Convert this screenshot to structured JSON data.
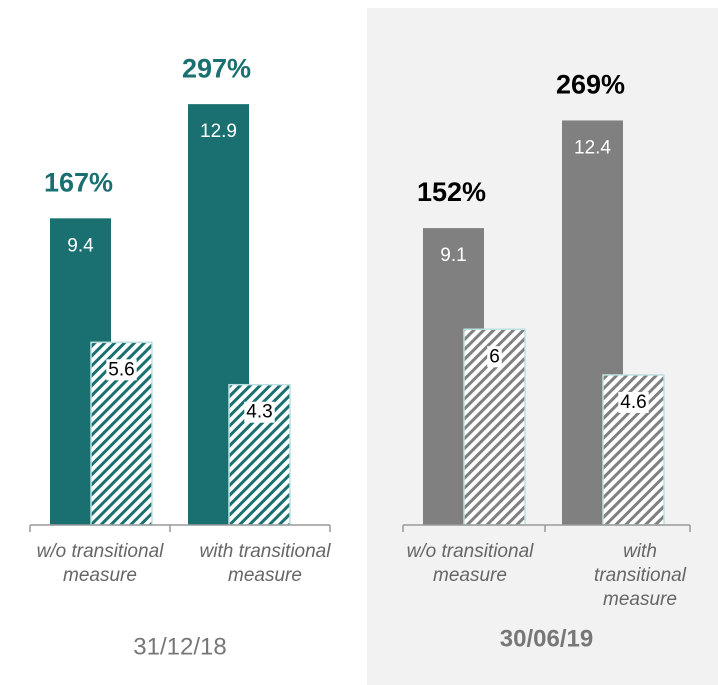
{
  "chart_data": [
    {
      "type": "bar",
      "title": "31/12/18",
      "categories": [
        "w/o transitional measure",
        "with transitional measure"
      ],
      "annotations": [
        "167%",
        "297%"
      ],
      "annotation_color": "#1a7070",
      "series": [
        {
          "color": "#1a7070",
          "hatch": false,
          "values": [
            9.4,
            12.9
          ]
        },
        {
          "color": "#1a7070",
          "hatch": true,
          "values": [
            5.6,
            4.3
          ]
        }
      ],
      "ylim": [
        0,
        16
      ]
    },
    {
      "type": "bar",
      "title": "30/06/19",
      "categories": [
        "w/o transitional measure",
        "with transitional measure"
      ],
      "annotations": [
        "152%",
        "269%"
      ],
      "annotation_color": "#000000",
      "series": [
        {
          "color": "#808080",
          "hatch": false,
          "values": [
            9.1,
            12.4
          ]
        },
        {
          "color": "#808080",
          "hatch": true,
          "values": [
            6.0,
            4.6
          ]
        }
      ],
      "ylim": [
        0,
        16
      ]
    }
  ]
}
